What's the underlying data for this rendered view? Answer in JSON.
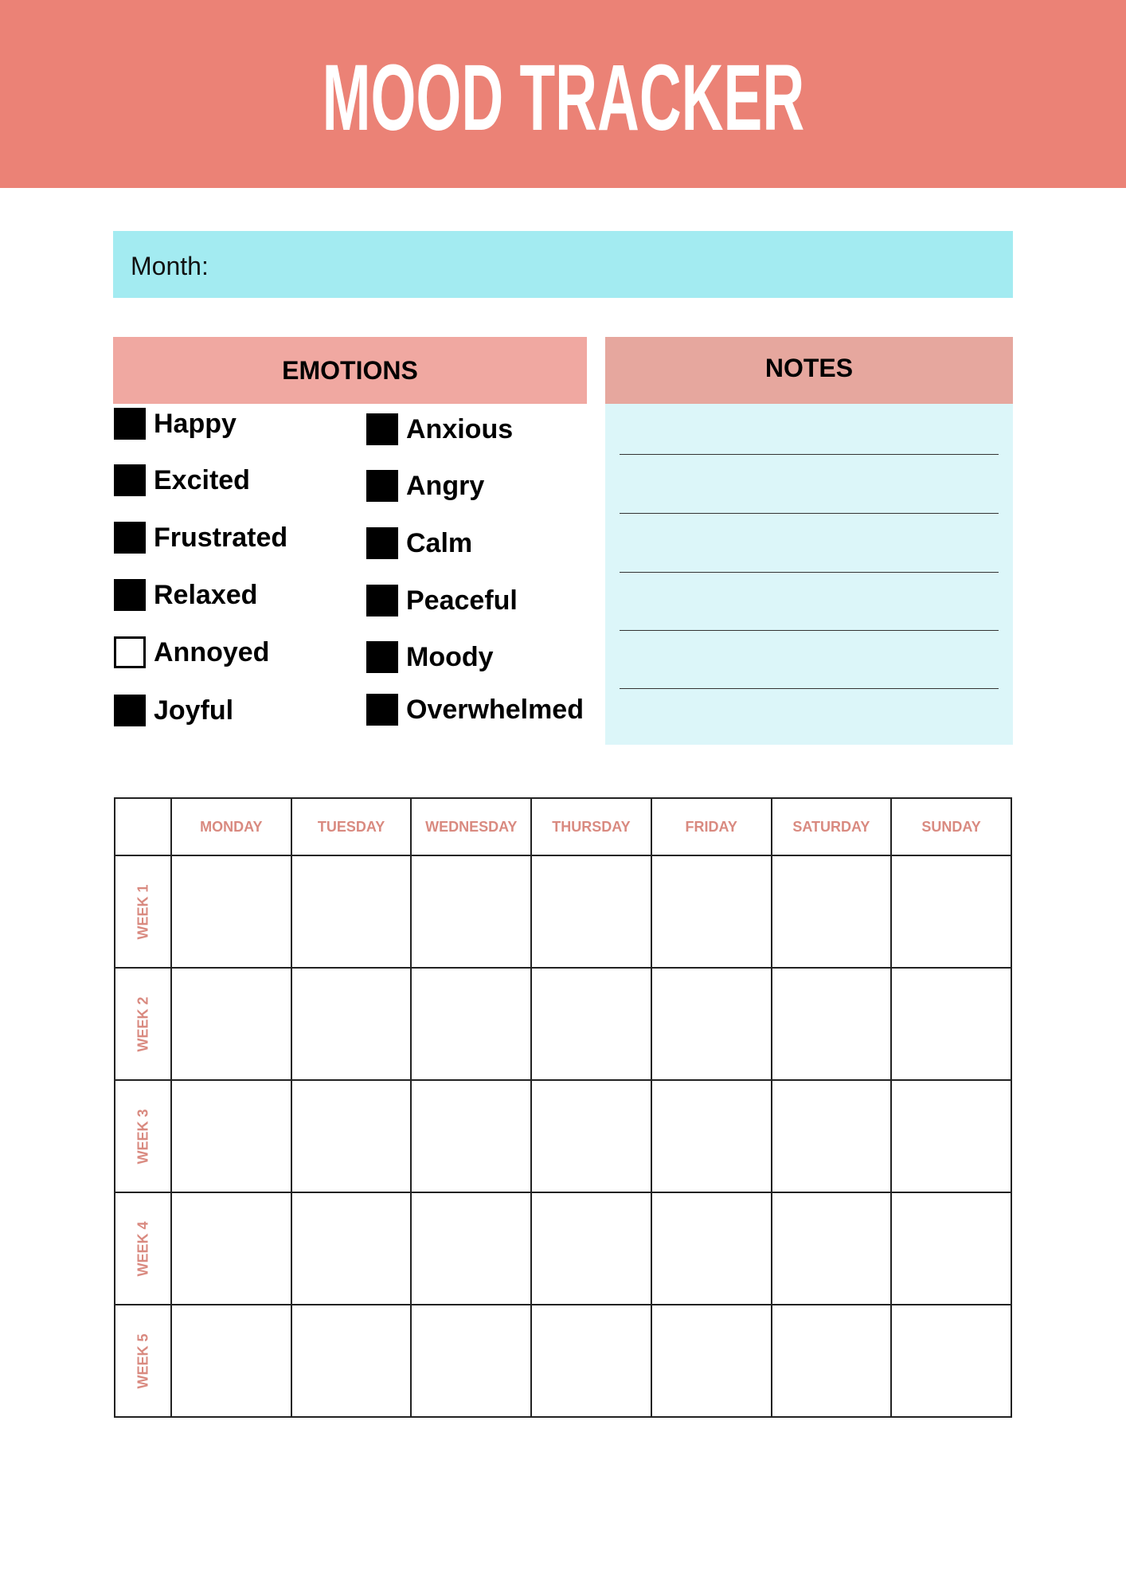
{
  "header": {
    "title": "MOOD TRACKER",
    "color": "#eb8276"
  },
  "month": {
    "label": "Month:",
    "color": "#a3ebf1"
  },
  "emotions": {
    "title": "EMOTIONS",
    "col1": [
      {
        "label": "Happy",
        "filled": true
      },
      {
        "label": "Excited",
        "filled": true
      },
      {
        "label": "Frustrated",
        "filled": true
      },
      {
        "label": "Relaxed",
        "filled": true
      },
      {
        "label": "Annoyed",
        "filled": false
      },
      {
        "label": "Joyful",
        "filled": true
      }
    ],
    "col2": [
      {
        "label": "Anxious",
        "filled": true
      },
      {
        "label": "Angry",
        "filled": true
      },
      {
        "label": "Calm",
        "filled": true
      },
      {
        "label": "Peaceful",
        "filled": true
      },
      {
        "label": "Moody",
        "filled": true
      },
      {
        "label": "Overwhelmed",
        "filled": true
      }
    ]
  },
  "notes": {
    "title": "NOTES",
    "line_count": 5
  },
  "calendar": {
    "days": [
      "MONDAY",
      "TUESDAY",
      "WEDNESDAY",
      "THURSDAY",
      "FRIDAY",
      "SATURDAY",
      "SUNDAY"
    ],
    "weeks": [
      "WEEK 1",
      "WEEK 2",
      "WEEK 3",
      "WEEK 4",
      "WEEK 5"
    ],
    "label_color": "#d98a80"
  }
}
